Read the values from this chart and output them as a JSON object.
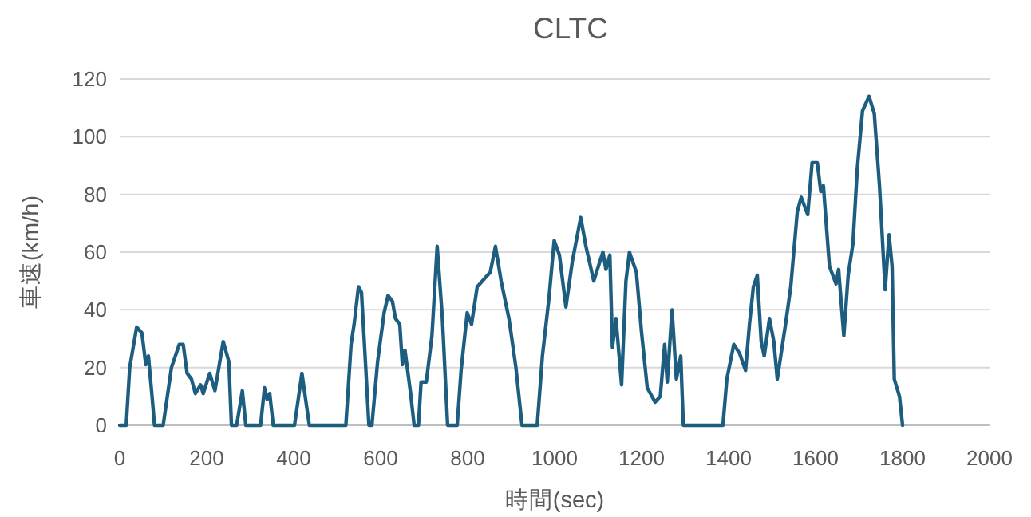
{
  "chart_data": {
    "type": "line",
    "title": "CLTC",
    "xlabel": "時間(sec)",
    "ylabel": "車速(km/h)",
    "color": "#1d5e80",
    "grid": "y",
    "xlim": [
      0,
      2000
    ],
    "ylim": [
      0,
      120
    ],
    "xticks": [
      0,
      200,
      400,
      600,
      800,
      1000,
      1200,
      1400,
      1600,
      1800,
      2000
    ],
    "yticks": [
      0,
      20,
      40,
      60,
      80,
      100,
      120
    ],
    "x": [
      0,
      15,
      23,
      39,
      51,
      60,
      66,
      75,
      80,
      100,
      119,
      137,
      146,
      155,
      165,
      174,
      186,
      192,
      207,
      219,
      238,
      251,
      257,
      269,
      282,
      290,
      324,
      333,
      339,
      345,
      353,
      402,
      419,
      436,
      520,
      532,
      539,
      549,
      556,
      565,
      573,
      580,
      593,
      608,
      617,
      627,
      634,
      644,
      650,
      656,
      669,
      677,
      687,
      693,
      705,
      718,
      730,
      742,
      754,
      776,
      785,
      799,
      809,
      822,
      840,
      852,
      864,
      877,
      895,
      911,
      925,
      960,
      972,
      987,
      999,
      1011,
      1026,
      1041,
      1060,
      1072,
      1090,
      1111,
      1118,
      1127,
      1133,
      1141,
      1154,
      1164,
      1172,
      1188,
      1200,
      1213,
      1231,
      1243,
      1253,
      1259,
      1270,
      1280,
      1290,
      1296,
      1387,
      1396,
      1412,
      1425,
      1439,
      1448,
      1457,
      1466,
      1475,
      1482,
      1494,
      1504,
      1512,
      1531,
      1543,
      1558,
      1567,
      1582,
      1592,
      1604,
      1612,
      1618,
      1632,
      1647,
      1653,
      1665,
      1675,
      1686,
      1696,
      1708,
      1723,
      1735,
      1747,
      1760,
      1769,
      1776,
      1781,
      1793,
      1800
    ],
    "values": [
      0,
      0,
      20,
      34,
      32,
      21,
      24,
      9,
      0,
      0,
      20,
      28,
      28,
      18,
      16,
      11,
      14,
      11,
      18,
      12,
      29,
      22,
      0,
      0,
      12,
      0,
      0,
      13,
      9,
      11,
      0,
      0,
      18,
      0,
      0,
      28,
      35,
      48,
      46,
      22,
      0,
      0,
      22,
      39,
      45,
      43,
      37,
      35,
      21,
      26,
      11,
      0,
      0,
      15,
      15,
      31,
      62,
      37,
      0,
      0,
      19,
      39,
      35,
      48,
      51,
      53,
      62,
      50,
      37,
      20,
      0,
      0,
      24,
      44,
      64,
      59,
      41,
      57,
      72,
      62,
      50,
      60,
      54,
      59,
      27,
      37,
      14,
      50,
      60,
      53,
      32,
      13,
      8,
      10,
      28,
      15,
      40,
      16,
      24,
      0,
      0,
      16,
      28,
      25,
      19,
      35,
      48,
      52,
      29,
      24,
      37,
      29,
      16,
      35,
      48,
      74,
      79,
      73,
      91,
      91,
      81,
      83,
      55,
      49,
      54,
      31,
      52,
      63,
      89,
      109,
      114,
      108,
      83,
      47,
      66,
      55,
      16,
      10,
      0
    ]
  }
}
